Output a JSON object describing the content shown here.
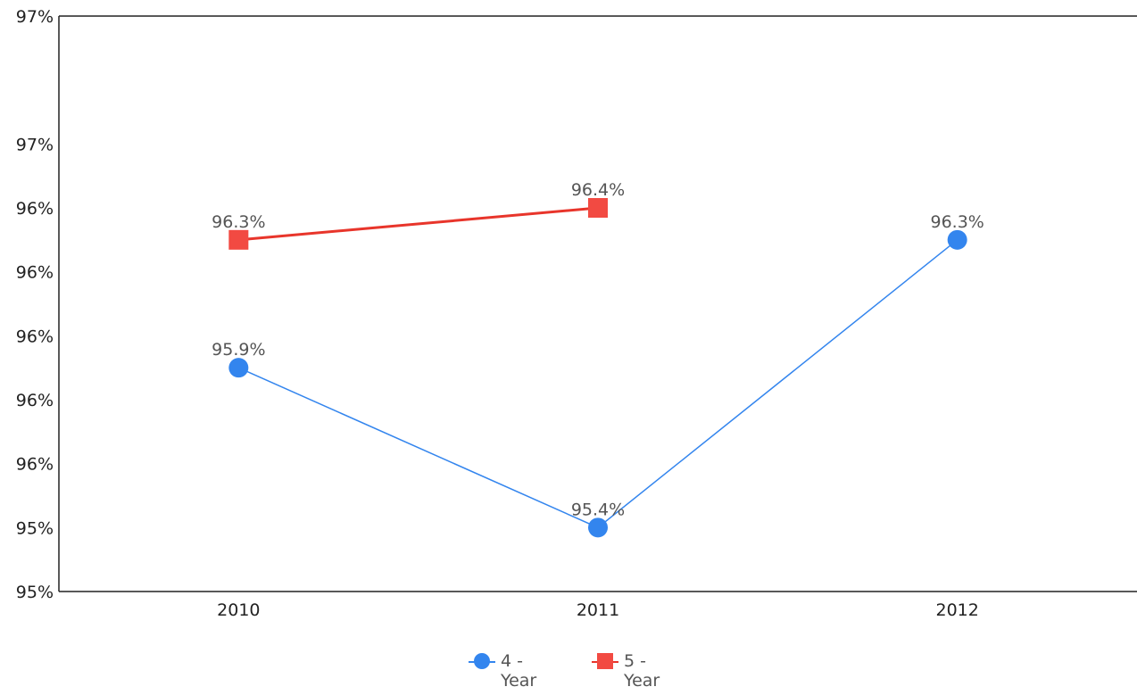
{
  "chart_data": {
    "type": "line",
    "title": "",
    "xlabel": "",
    "ylabel": "",
    "categories": [
      "2010",
      "2011",
      "2012"
    ],
    "ylim": [
      95.2,
      97.0
    ],
    "y_ticks": [
      {
        "value": 95.2,
        "label": "95%"
      },
      {
        "value": 95.4,
        "label": "95%"
      },
      {
        "value": 95.6,
        "label": "96%"
      },
      {
        "value": 95.8,
        "label": "96%"
      },
      {
        "value": 96.0,
        "label": "96%"
      },
      {
        "value": 96.2,
        "label": "96%"
      },
      {
        "value": 96.4,
        "label": "96%"
      },
      {
        "value": 96.6,
        "label": "97%"
      }
    ],
    "grid": false,
    "legend_position": "bottom",
    "series": [
      {
        "name": "4 - Year",
        "color": "#3385ee",
        "marker": "circle",
        "values": [
          95.9,
          95.4,
          96.3
        ],
        "labels": [
          "95.9%",
          "95.4%",
          "96.3%"
        ]
      },
      {
        "name": "5 - Year",
        "color": "#e8352b",
        "marker": "square",
        "values": [
          96.3,
          96.4,
          null
        ],
        "labels": [
          "96.3%",
          "96.4%",
          ""
        ]
      }
    ]
  },
  "legend": {
    "items": [
      {
        "line1": "4 -",
        "line2": "Year"
      },
      {
        "line1": "5 -",
        "line2": "Year"
      }
    ]
  }
}
